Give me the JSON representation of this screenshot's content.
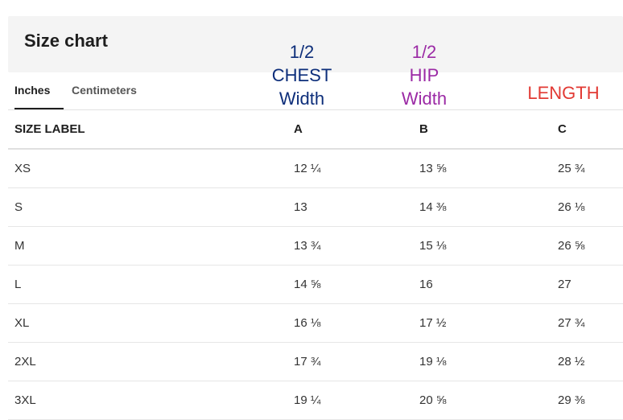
{
  "header": {
    "title": "Size chart"
  },
  "tabs": [
    {
      "label": "Inches",
      "active": true
    },
    {
      "label": "Centimeters",
      "active": false
    }
  ],
  "annotations": {
    "a": {
      "lines": [
        "1/2",
        "CHEST",
        "Width"
      ],
      "color": "#0d2e7a"
    },
    "b": {
      "lines": [
        "1/2",
        "HIP",
        "Width"
      ],
      "color": "#9b2aa5"
    },
    "c": {
      "lines": [
        "LENGTH"
      ],
      "color": "#e23a34"
    }
  },
  "table": {
    "headers": [
      "SIZE LABEL",
      "A",
      "B",
      "C"
    ],
    "rows": [
      [
        "XS",
        "12 ¼",
        "13 ⅝",
        "25 ¾"
      ],
      [
        "S",
        "13",
        "14 ⅜",
        "26 ⅛"
      ],
      [
        "M",
        "13 ¾",
        "15 ⅛",
        "26 ⅝"
      ],
      [
        "L",
        "14 ⅝",
        "16",
        "27"
      ],
      [
        "XL",
        "16 ⅛",
        "17 ½",
        "27 ¾"
      ],
      [
        "2XL",
        "17 ¾",
        "19 ⅛",
        "28 ½"
      ],
      [
        "3XL",
        "19 ¼",
        "20 ⅝",
        "29 ⅜"
      ]
    ]
  }
}
